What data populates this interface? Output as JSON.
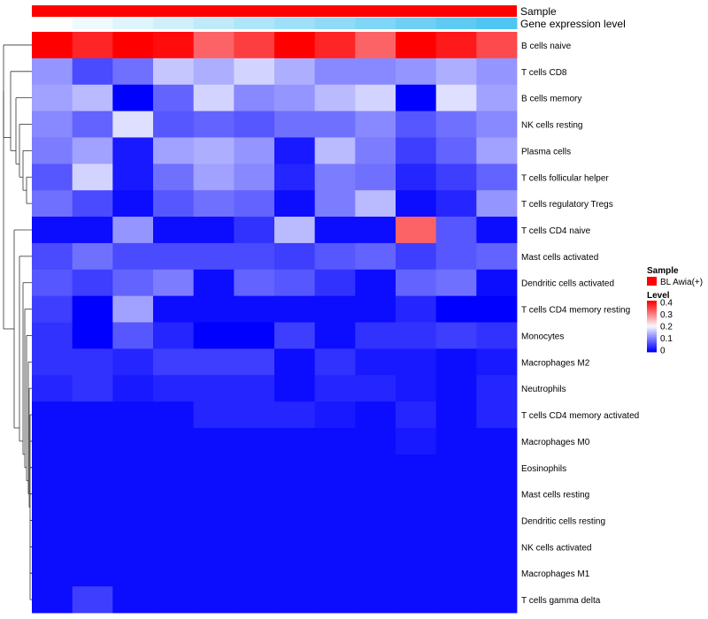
{
  "chart_data": {
    "type": "heatmap",
    "annotation_tracks": [
      {
        "name": "Sample",
        "values": [
          "BL Awia(+)"
        ],
        "color": "#ff0000"
      },
      {
        "name": "Gene expression level",
        "color_low": "#ffffff",
        "color_high": "#4fc6f2"
      }
    ],
    "rows": [
      "B cells naive",
      "T cells CD8",
      "B cells memory",
      "NK cells resting",
      "Plasma cells",
      "T cells follicular helper",
      "T cells regulatory  Tregs",
      "T cells CD4 naive",
      "Mast cells activated",
      "Dendritic cells activated",
      "T cells CD4 memory resting",
      "Monocytes",
      "Macrophages M2",
      "Neutrophils",
      "T cells CD4 memory activated",
      "Macrophages M0",
      "Eosinophils",
      "Mast cells resting",
      "Dendritic cells resting",
      "NK cells activated",
      "Macrophages M1",
      "T cells gamma delta"
    ],
    "values": [
      [
        0.41,
        0.37,
        0.41,
        0.39,
        0.32,
        0.35,
        0.41,
        0.37,
        0.32,
        0.4,
        0.38,
        0.34
      ],
      [
        0.12,
        0.06,
        0.09,
        0.16,
        0.14,
        0.17,
        0.14,
        0.11,
        0.11,
        0.12,
        0.14,
        0.12
      ],
      [
        0.13,
        0.15,
        0.0,
        0.08,
        0.17,
        0.11,
        0.12,
        0.15,
        0.17,
        0.0,
        0.18,
        0.13
      ],
      [
        0.11,
        0.08,
        0.18,
        0.07,
        0.08,
        0.07,
        0.09,
        0.09,
        0.11,
        0.07,
        0.09,
        0.11
      ],
      [
        0.1,
        0.13,
        0.02,
        0.13,
        0.14,
        0.12,
        0.02,
        0.15,
        0.1,
        0.05,
        0.08,
        0.13
      ],
      [
        0.07,
        0.17,
        0.02,
        0.09,
        0.13,
        0.11,
        0.03,
        0.1,
        0.09,
        0.03,
        0.05,
        0.08
      ],
      [
        0.09,
        0.06,
        0.01,
        0.07,
        0.09,
        0.08,
        0.01,
        0.1,
        0.15,
        0.01,
        0.03,
        0.12
      ],
      [
        0.01,
        0.01,
        0.12,
        0.01,
        0.01,
        0.04,
        0.15,
        0.01,
        0.01,
        0.32,
        0.07,
        0.01
      ],
      [
        0.06,
        0.09,
        0.06,
        0.06,
        0.06,
        0.06,
        0.05,
        0.07,
        0.08,
        0.05,
        0.07,
        0.08
      ],
      [
        0.07,
        0.05,
        0.08,
        0.1,
        0.01,
        0.08,
        0.07,
        0.04,
        0.01,
        0.08,
        0.09,
        0.01
      ],
      [
        0.05,
        0.0,
        0.13,
        0.01,
        0.01,
        0.01,
        0.01,
        0.01,
        0.01,
        0.03,
        0.0,
        0.0
      ],
      [
        0.04,
        0.0,
        0.07,
        0.03,
        0.0,
        0.0,
        0.05,
        0.01,
        0.04,
        0.04,
        0.05,
        0.04
      ],
      [
        0.04,
        0.04,
        0.03,
        0.05,
        0.05,
        0.05,
        0.01,
        0.04,
        0.02,
        0.02,
        0.01,
        0.02
      ],
      [
        0.03,
        0.04,
        0.02,
        0.03,
        0.03,
        0.03,
        0.01,
        0.03,
        0.03,
        0.02,
        0.01,
        0.03
      ],
      [
        0.01,
        0.01,
        0.01,
        0.01,
        0.03,
        0.03,
        0.03,
        0.02,
        0.01,
        0.03,
        0.01,
        0.03
      ],
      [
        0.01,
        0.01,
        0.01,
        0.01,
        0.01,
        0.01,
        0.01,
        0.01,
        0.01,
        0.02,
        0.01,
        0.01
      ],
      [
        0.01,
        0.01,
        0.01,
        0.01,
        0.01,
        0.01,
        0.01,
        0.01,
        0.01,
        0.01,
        0.01,
        0.01
      ],
      [
        0.01,
        0.01,
        0.01,
        0.01,
        0.01,
        0.01,
        0.01,
        0.01,
        0.01,
        0.01,
        0.01,
        0.01
      ],
      [
        0.01,
        0.01,
        0.01,
        0.01,
        0.01,
        0.01,
        0.01,
        0.01,
        0.01,
        0.01,
        0.01,
        0.01
      ],
      [
        0.01,
        0.01,
        0.01,
        0.01,
        0.01,
        0.01,
        0.01,
        0.01,
        0.01,
        0.01,
        0.01,
        0.01
      ],
      [
        0.01,
        0.01,
        0.01,
        0.01,
        0.01,
        0.01,
        0.01,
        0.01,
        0.01,
        0.01,
        0.01,
        0.01
      ],
      [
        0.01,
        0.05,
        0.01,
        0.01,
        0.01,
        0.01,
        0.01,
        0.01,
        0.01,
        0.01,
        0.01,
        0.01
      ]
    ],
    "color_scale": {
      "low": "#0000ff",
      "mid": "#f8f8ff",
      "high": "#ff0000",
      "range": [
        0,
        0.4
      ]
    },
    "legend": {
      "sample_title": "Sample",
      "sample_label": "BL Awia(+)",
      "level_title": "Level",
      "ticks": [
        "0.4",
        "0.3",
        "0.2",
        "0.1",
        "0"
      ],
      "placement": "right"
    },
    "dendrogram": "rows, left"
  }
}
